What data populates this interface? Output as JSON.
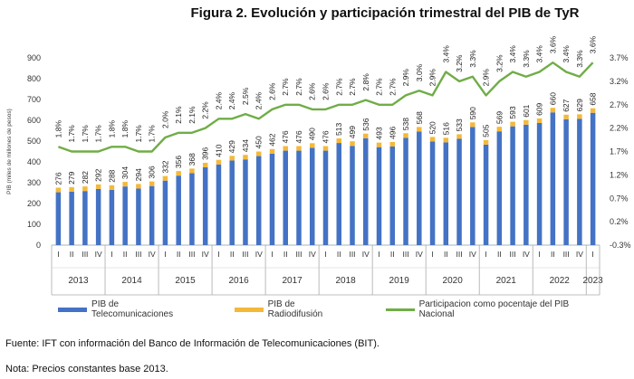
{
  "figure_title": "Figura 2. Evolución y participación trimestral del PIB de TyR",
  "legend": {
    "telecom": "PIB de Telecomunicaciones",
    "radio": "PIB de Radiodifusión",
    "share": "Participacion como pocentaje del PIB Nacional"
  },
  "colors": {
    "telecom": "#4472C4",
    "radio": "#F4B93A",
    "share": "#70AD47"
  },
  "source": "Fuente: IFT con información del Banco de Información de Telecomunicaciones (BIT).",
  "note": "Nota: Precios constantes base 2013.",
  "chart_data": {
    "type": "bar",
    "ylabel": "PIB (miles de millones de pesos)",
    "ylim": [
      0,
      900
    ],
    "y2lim": [
      -0.3,
      3.7
    ],
    "left_ticks": [
      "0",
      "100",
      "200",
      "300",
      "400",
      "500",
      "600",
      "700",
      "800",
      "900"
    ],
    "right_ticks": [
      "-0.3%",
      "0.2%",
      "0.7%",
      "1.2%",
      "1.7%",
      "2.2%",
      "2.7%",
      "3.2%",
      "3.7%"
    ],
    "categories": [
      "I",
      "II",
      "III",
      "IV",
      "I",
      "II",
      "III",
      "IV",
      "I",
      "II",
      "III",
      "IV",
      "I",
      "II",
      "III",
      "IV",
      "I",
      "II",
      "III",
      "IV",
      "I",
      "II",
      "III",
      "IV",
      "I",
      "II",
      "III",
      "IV",
      "I",
      "II",
      "III",
      "IV",
      "I",
      "II",
      "III",
      "IV",
      "I",
      "II",
      "III",
      "IV",
      "I"
    ],
    "years": [
      {
        "label": "2013",
        "quarters": 4
      },
      {
        "label": "2014",
        "quarters": 4
      },
      {
        "label": "2015",
        "quarters": 4
      },
      {
        "label": "2016",
        "quarters": 4
      },
      {
        "label": "2017",
        "quarters": 4
      },
      {
        "label": "2018",
        "quarters": 4
      },
      {
        "label": "2019",
        "quarters": 4
      },
      {
        "label": "2020",
        "quarters": 4
      },
      {
        "label": "2021",
        "quarters": 4
      },
      {
        "label": "2022",
        "quarters": 4
      },
      {
        "label": "2023",
        "quarters": 1
      }
    ],
    "totals": [
      276,
      279,
      282,
      292,
      288,
      304,
      294,
      306,
      332,
      356,
      368,
      396,
      410,
      429,
      434,
      450,
      462,
      476,
      476,
      490,
      476,
      513,
      499,
      536,
      493,
      496,
      538,
      568,
      520,
      516,
      533,
      590,
      505,
      569,
      593,
      601,
      609,
      660,
      627,
      629,
      658
    ],
    "series": [
      {
        "name": "PIB de Telecomunicaciones",
        "values": [
          254,
          257,
          260,
          270,
          266,
          282,
          272,
          284,
          310,
          334,
          346,
          374,
          388,
          407,
          412,
          428,
          440,
          454,
          454,
          468,
          454,
          491,
          477,
          514,
          471,
          474,
          516,
          546,
          498,
          494,
          511,
          568,
          483,
          547,
          571,
          579,
          587,
          638,
          605,
          607,
          636
        ]
      },
      {
        "name": "PIB de Radiodifusión",
        "values": [
          22,
          22,
          22,
          22,
          22,
          22,
          22,
          22,
          22,
          22,
          22,
          22,
          22,
          22,
          22,
          22,
          22,
          22,
          22,
          22,
          22,
          22,
          22,
          22,
          22,
          22,
          22,
          22,
          22,
          22,
          22,
          22,
          22,
          22,
          22,
          22,
          22,
          22,
          22,
          22,
          22
        ]
      },
      {
        "name": "Participacion como pocentaje del PIB Nacional",
        "values": [
          1.8,
          1.7,
          1.7,
          1.7,
          1.8,
          1.8,
          1.7,
          1.7,
          2.0,
          2.1,
          2.1,
          2.2,
          2.4,
          2.4,
          2.5,
          2.4,
          2.6,
          2.7,
          2.7,
          2.6,
          2.6,
          2.7,
          2.7,
          2.8,
          2.7,
          2.7,
          2.9,
          3.0,
          2.9,
          3.4,
          3.2,
          3.3,
          2.9,
          3.2,
          3.4,
          3.3,
          3.4,
          3.6,
          3.4,
          3.3,
          3.6
        ],
        "labels": [
          "1.8%",
          "1.7%",
          "1.7%",
          "1.7%",
          "1.8%",
          "1.8%",
          "1.7%",
          "1.7%",
          "2.0%",
          "2.1%",
          "2.1%",
          "2.2%",
          "2.4%",
          "2.4%",
          "2.5%",
          "2.4%",
          "2.6%",
          "2.7%",
          "2.7%",
          "2.6%",
          "2.6%",
          "2.7%",
          "2.7%",
          "2.8%",
          "2.7%",
          "2.7%",
          "2.9%",
          "3.0%",
          "2.9%",
          "3.4%",
          "3.2%",
          "3.3%",
          "2.9%",
          "3.2%",
          "3.4%",
          "3.3%",
          "3.4%",
          "3.6%",
          "3.4%",
          "3.3%",
          "3.6%"
        ]
      }
    ]
  }
}
